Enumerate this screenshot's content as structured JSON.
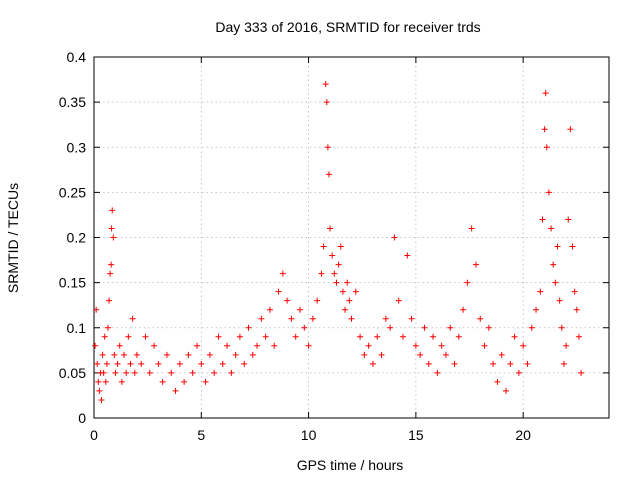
{
  "chart_data": {
    "type": "scatter",
    "title": "Day 333 of 2016, SRMTID for receiver trds",
    "xlabel": "GPS time / hours",
    "ylabel": "SRMTID / TECUs",
    "xlim": [
      0,
      24
    ],
    "ylim": [
      0,
      0.4
    ],
    "xticks": [
      0,
      5,
      10,
      15,
      20
    ],
    "xtick_labels": [
      "0",
      "5",
      "10",
      "15",
      "20"
    ],
    "yticks": [
      0,
      0.05,
      0.1,
      0.15,
      0.2,
      0.25,
      0.3,
      0.35,
      0.4
    ],
    "ytick_labels": [
      "0",
      "0.05",
      "0.1",
      "0.15",
      "0.2",
      "0.25",
      "0.3",
      "0.35",
      "0.4"
    ],
    "grid": true,
    "marker": "plus",
    "color": "#ff0000",
    "series": [
      {
        "name": "SRMTID",
        "points": [
          [
            0.05,
            0.08
          ],
          [
            0.1,
            0.12
          ],
          [
            0.15,
            0.06
          ],
          [
            0.2,
            0.04
          ],
          [
            0.25,
            0.03
          ],
          [
            0.3,
            0.05
          ],
          [
            0.35,
            0.02
          ],
          [
            0.4,
            0.07
          ],
          [
            0.45,
            0.05
          ],
          [
            0.5,
            0.09
          ],
          [
            0.55,
            0.04
          ],
          [
            0.6,
            0.06
          ],
          [
            0.65,
            0.1
          ],
          [
            0.7,
            0.13
          ],
          [
            0.75,
            0.16
          ],
          [
            0.8,
            0.17
          ],
          [
            0.82,
            0.21
          ],
          [
            0.85,
            0.23
          ],
          [
            0.9,
            0.2
          ],
          [
            0.95,
            0.07
          ],
          [
            1.0,
            0.05
          ],
          [
            1.1,
            0.06
          ],
          [
            1.2,
            0.08
          ],
          [
            1.3,
            0.04
          ],
          [
            1.4,
            0.07
          ],
          [
            1.5,
            0.05
          ],
          [
            1.6,
            0.09
          ],
          [
            1.7,
            0.06
          ],
          [
            1.8,
            0.11
          ],
          [
            1.9,
            0.05
          ],
          [
            2.0,
            0.07
          ],
          [
            2.2,
            0.06
          ],
          [
            2.4,
            0.09
          ],
          [
            2.6,
            0.05
          ],
          [
            2.8,
            0.08
          ],
          [
            3.0,
            0.06
          ],
          [
            3.2,
            0.04
          ],
          [
            3.4,
            0.07
          ],
          [
            3.6,
            0.05
          ],
          [
            3.8,
            0.03
          ],
          [
            4.0,
            0.06
          ],
          [
            4.2,
            0.04
          ],
          [
            4.4,
            0.07
          ],
          [
            4.6,
            0.05
          ],
          [
            4.8,
            0.08
          ],
          [
            5.0,
            0.06
          ],
          [
            5.2,
            0.04
          ],
          [
            5.4,
            0.07
          ],
          [
            5.6,
            0.05
          ],
          [
            5.8,
            0.09
          ],
          [
            6.0,
            0.06
          ],
          [
            6.2,
            0.08
          ],
          [
            6.4,
            0.05
          ],
          [
            6.6,
            0.07
          ],
          [
            6.8,
            0.09
          ],
          [
            7.0,
            0.06
          ],
          [
            7.2,
            0.1
          ],
          [
            7.4,
            0.07
          ],
          [
            7.6,
            0.08
          ],
          [
            7.8,
            0.11
          ],
          [
            8.0,
            0.09
          ],
          [
            8.2,
            0.12
          ],
          [
            8.4,
            0.08
          ],
          [
            8.6,
            0.14
          ],
          [
            8.8,
            0.16
          ],
          [
            9.0,
            0.13
          ],
          [
            9.2,
            0.11
          ],
          [
            9.4,
            0.09
          ],
          [
            9.6,
            0.12
          ],
          [
            9.8,
            0.1
          ],
          [
            10.0,
            0.08
          ],
          [
            10.2,
            0.11
          ],
          [
            10.4,
            0.13
          ],
          [
            10.6,
            0.16
          ],
          [
            10.7,
            0.19
          ],
          [
            10.8,
            0.37
          ],
          [
            10.85,
            0.35
          ],
          [
            10.9,
            0.3
          ],
          [
            10.95,
            0.27
          ],
          [
            11.0,
            0.21
          ],
          [
            11.1,
            0.18
          ],
          [
            11.2,
            0.16
          ],
          [
            11.3,
            0.15
          ],
          [
            11.4,
            0.17
          ],
          [
            11.5,
            0.19
          ],
          [
            11.6,
            0.14
          ],
          [
            11.7,
            0.12
          ],
          [
            11.8,
            0.15
          ],
          [
            11.9,
            0.13
          ],
          [
            12.0,
            0.11
          ],
          [
            12.2,
            0.14
          ],
          [
            12.4,
            0.09
          ],
          [
            12.6,
            0.07
          ],
          [
            12.8,
            0.08
          ],
          [
            13.0,
            0.06
          ],
          [
            13.2,
            0.09
          ],
          [
            13.4,
            0.07
          ],
          [
            13.6,
            0.11
          ],
          [
            13.8,
            0.1
          ],
          [
            14.0,
            0.2
          ],
          [
            14.2,
            0.13
          ],
          [
            14.4,
            0.09
          ],
          [
            14.6,
            0.18
          ],
          [
            14.8,
            0.11
          ],
          [
            15.0,
            0.08
          ],
          [
            15.2,
            0.07
          ],
          [
            15.4,
            0.1
          ],
          [
            15.6,
            0.06
          ],
          [
            15.8,
            0.09
          ],
          [
            16.0,
            0.05
          ],
          [
            16.2,
            0.08
          ],
          [
            16.4,
            0.07
          ],
          [
            16.6,
            0.1
          ],
          [
            16.8,
            0.06
          ],
          [
            17.0,
            0.09
          ],
          [
            17.2,
            0.12
          ],
          [
            17.4,
            0.15
          ],
          [
            17.6,
            0.21
          ],
          [
            17.8,
            0.17
          ],
          [
            18.0,
            0.11
          ],
          [
            18.2,
            0.08
          ],
          [
            18.4,
            0.1
          ],
          [
            18.6,
            0.06
          ],
          [
            18.8,
            0.04
          ],
          [
            19.0,
            0.07
          ],
          [
            19.2,
            0.03
          ],
          [
            19.4,
            0.06
          ],
          [
            19.6,
            0.09
          ],
          [
            19.8,
            0.05
          ],
          [
            20.0,
            0.08
          ],
          [
            20.2,
            0.06
          ],
          [
            20.4,
            0.1
          ],
          [
            20.6,
            0.12
          ],
          [
            20.8,
            0.14
          ],
          [
            20.9,
            0.22
          ],
          [
            21.0,
            0.32
          ],
          [
            21.05,
            0.36
          ],
          [
            21.1,
            0.3
          ],
          [
            21.2,
            0.25
          ],
          [
            21.3,
            0.21
          ],
          [
            21.4,
            0.17
          ],
          [
            21.5,
            0.15
          ],
          [
            21.6,
            0.19
          ],
          [
            21.7,
            0.13
          ],
          [
            21.8,
            0.1
          ],
          [
            21.9,
            0.06
          ],
          [
            22.0,
            0.08
          ],
          [
            22.1,
            0.22
          ],
          [
            22.2,
            0.32
          ],
          [
            22.3,
            0.19
          ],
          [
            22.4,
            0.14
          ],
          [
            22.5,
            0.12
          ],
          [
            22.6,
            0.09
          ],
          [
            22.7,
            0.05
          ]
        ]
      }
    ]
  }
}
